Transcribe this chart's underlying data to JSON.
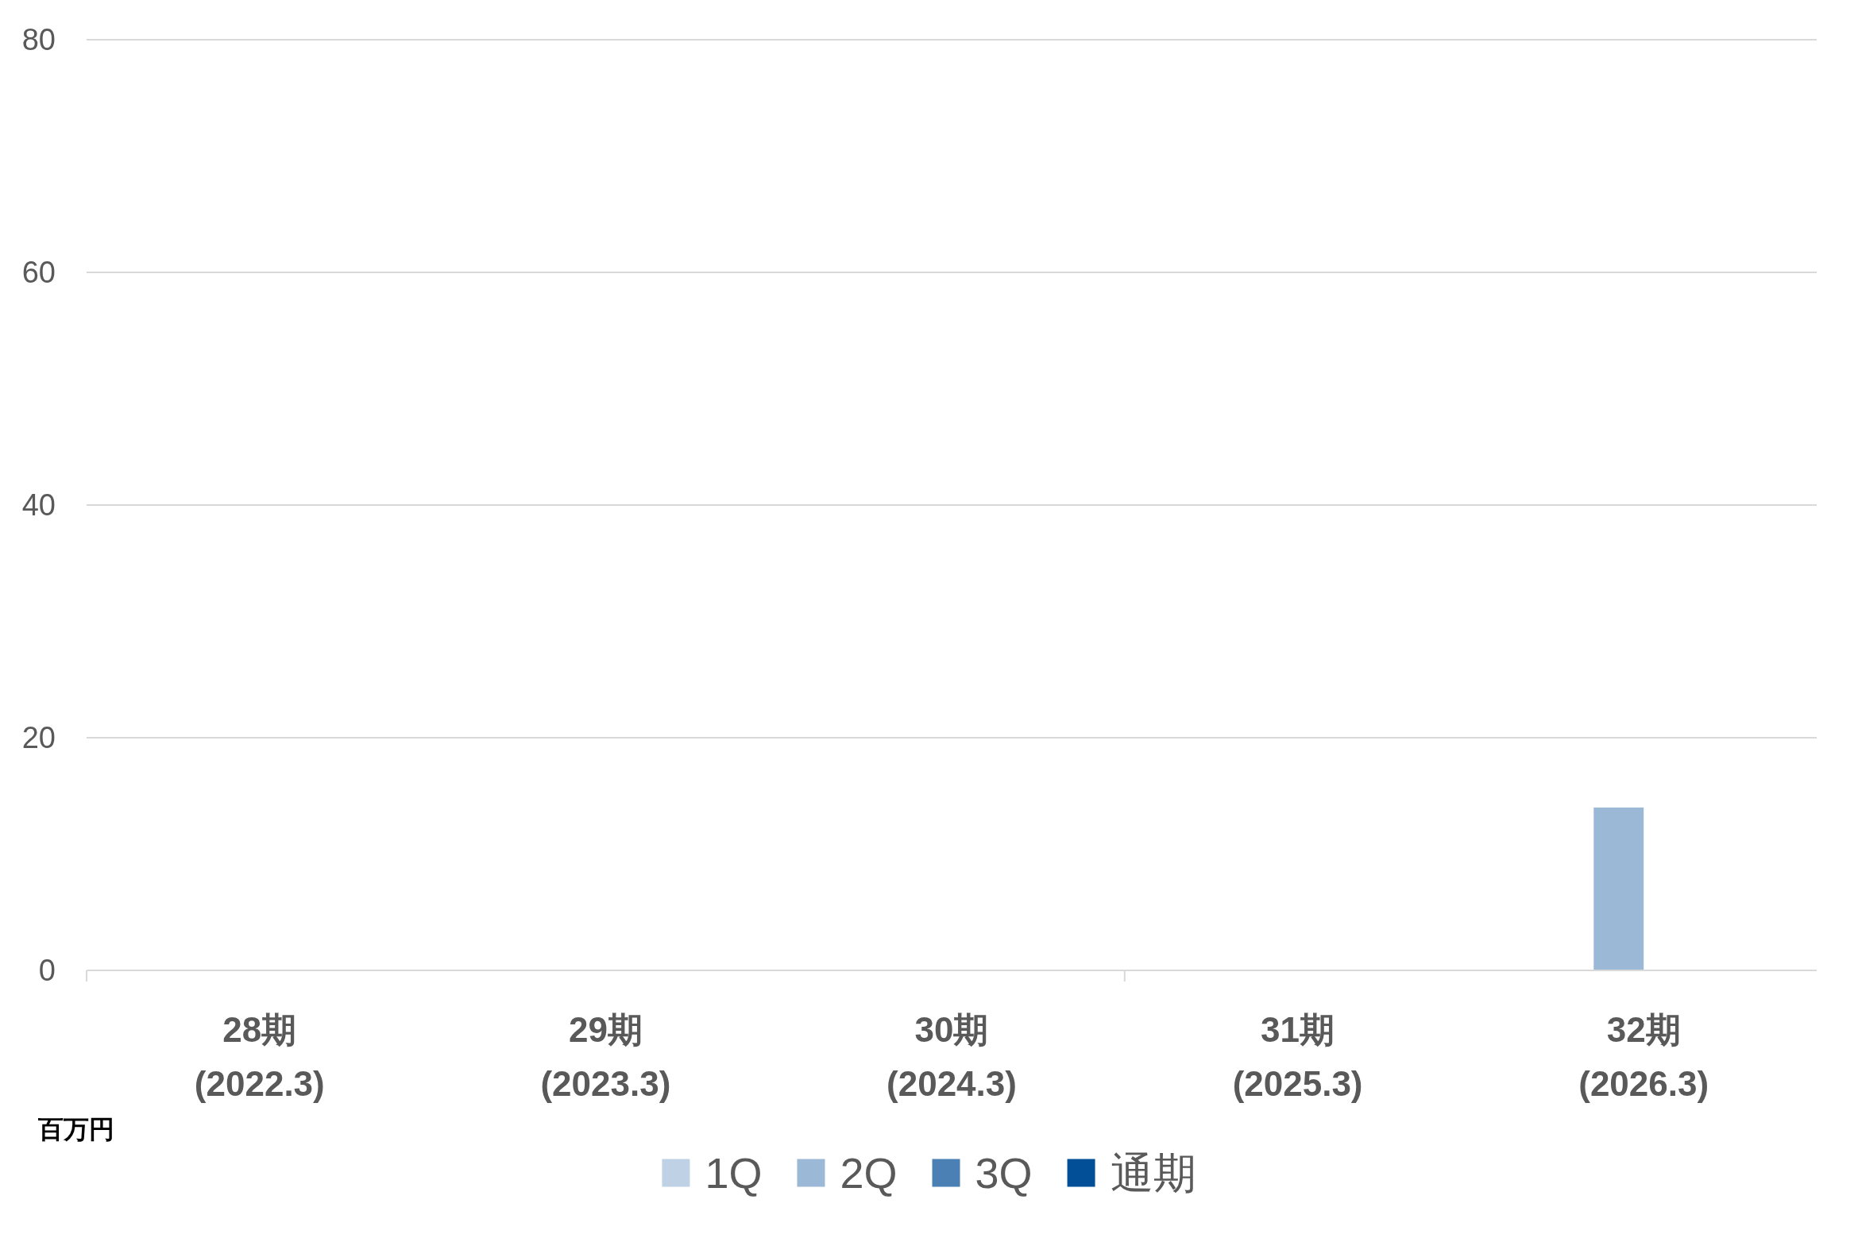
{
  "chart_data": {
    "type": "bar",
    "categories": [
      "28期\n(2022.3)",
      "29期\n(2023.3)",
      "30期\n(2024.3)",
      "31期\n(2025.3)",
      "32期\n(2026.3)"
    ],
    "series": [
      {
        "name": "1Q",
        "color": "#bfd2e5",
        "values": [
          null,
          null,
          null,
          null,
          null
        ]
      },
      {
        "name": "2Q",
        "color": "#9bb9d6",
        "values": [
          null,
          null,
          null,
          null,
          14
        ]
      },
      {
        "name": "3Q",
        "color": "#4b80b4",
        "values": [
          null,
          null,
          null,
          null,
          null
        ]
      },
      {
        "name": "通期",
        "color": "#024f98",
        "values": [
          null,
          null,
          null,
          null,
          null
        ]
      }
    ],
    "ylim": [
      0,
      80
    ],
    "yticks": [
      0,
      20,
      40,
      60,
      80
    ],
    "grid": "y",
    "legend": "bottom",
    "ylabel": "百万円"
  }
}
